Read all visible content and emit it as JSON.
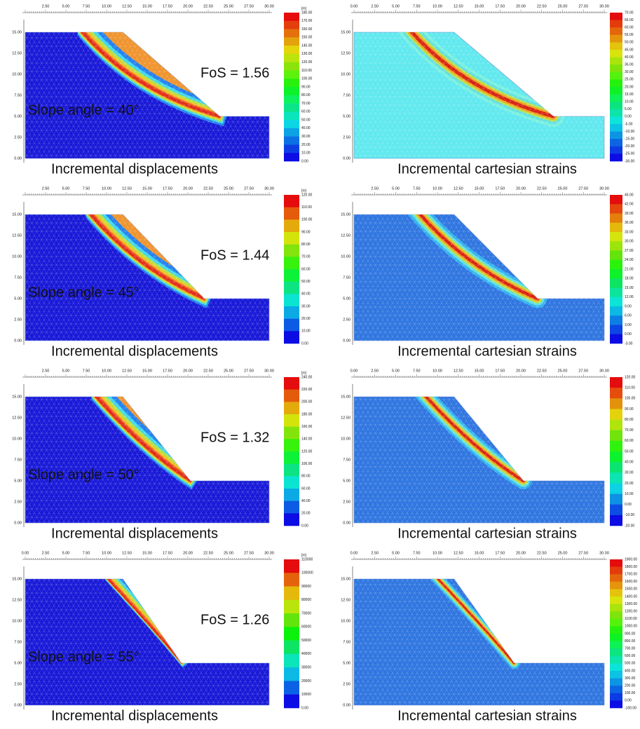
{
  "panels": [
    {
      "fos": "FoS = 1.56",
      "slope_angle": "Slope angle = 40°",
      "caption": "Incremental displacements",
      "units": "[m]",
      "x_ticks": [
        "2.50",
        "5.00",
        "7.50",
        "10.00",
        "12.50",
        "15.00",
        "17.50",
        "20.00",
        "22.50",
        "25.00",
        "27.50",
        "30.00"
      ],
      "y_ticks": [
        "0.00",
        "2.50",
        "5.00",
        "7.50",
        "10.00",
        "12.50",
        "15.00"
      ],
      "legend": [
        "180.00",
        "170.00",
        "160.00",
        "150.00",
        "140.00",
        "130.00",
        "120.00",
        "110.00",
        "100.00",
        "90.00",
        "80.00",
        "70.00",
        "60.00",
        "50.00",
        "40.00",
        "30.00",
        "20.00",
        "10.00",
        "0.00"
      ]
    },
    {
      "caption": "Incremental cartesian strains",
      "x_ticks": [
        "0.00",
        "2.50",
        "5.00",
        "7.50",
        "10.00",
        "12.50",
        "15.00",
        "17.50",
        "20.00",
        "22.50",
        "25.00",
        "27.50",
        "30.00"
      ],
      "y_ticks": [
        "0.00",
        "2.50",
        "5.00",
        "7.50",
        "10.00",
        "12.50",
        "15.00"
      ],
      "legend": [
        "70.00",
        "65.00",
        "60.00",
        "55.00",
        "50.00",
        "45.00",
        "40.00",
        "35.00",
        "30.00",
        "25.00",
        "20.00",
        "15.00",
        "10.00",
        "5.00",
        "0.00",
        "-5.00",
        "-10.00",
        "-15.00",
        "-20.00",
        "-25.00",
        "-30.00"
      ]
    },
    {
      "fos": "FoS = 1.44",
      "slope_angle": "Slope angle = 45°",
      "caption": "Incremental displacements",
      "units": "[m]",
      "x_ticks": [
        "2.50",
        "5.00",
        "7.50",
        "10.00",
        "12.50",
        "15.00",
        "17.50",
        "20.00",
        "22.50",
        "25.00",
        "27.50",
        "30.00"
      ],
      "y_ticks": [
        "0.00",
        "2.50",
        "5.00",
        "7.50",
        "10.00",
        "12.50",
        "15.00"
      ],
      "legend": [
        "120.00",
        "110.00",
        "100.00",
        "90.00",
        "80.00",
        "70.00",
        "60.00",
        "50.00",
        "40.00",
        "30.00",
        "20.00",
        "10.00",
        "0.00"
      ]
    },
    {
      "caption": "Incremental cartesian strains",
      "x_ticks": [
        "2.50",
        "5.00",
        "7.50",
        "10.00",
        "12.50",
        "15.00",
        "17.50",
        "20.00",
        "22.50",
        "25.00",
        "27.50",
        "30.00"
      ],
      "y_ticks": [
        "0.00",
        "2.50",
        "5.00",
        "7.50",
        "10.00",
        "12.50",
        "15.00"
      ],
      "legend": [
        "45.00",
        "42.00",
        "39.00",
        "36.00",
        "33.00",
        "30.00",
        "27.00",
        "24.00",
        "21.00",
        "18.00",
        "15.00",
        "12.00",
        "9.00",
        "6.00",
        "3.00",
        "0.00",
        "-3.00"
      ]
    },
    {
      "fos": "FoS = 1.32",
      "slope_angle": "Slope angle = 50°",
      "caption": "Incremental displacements",
      "units": "[m]",
      "x_ticks": [
        "2.50",
        "5.00",
        "7.50",
        "10.00",
        "12.50",
        "15.00",
        "17.50",
        "20.00",
        "22.50",
        "25.00",
        "27.50",
        "30.00"
      ],
      "y_ticks": [
        "0.00",
        "2.50",
        "5.00",
        "7.50",
        "10.00",
        "12.50",
        "15.00"
      ],
      "legend": [
        "240.00",
        "220.00",
        "200.00",
        "180.00",
        "160.00",
        "140.00",
        "120.00",
        "100.00",
        "80.00",
        "60.00",
        "40.00",
        "20.00",
        "0.00"
      ]
    },
    {
      "caption": "Incremental cartesian strains",
      "x_ticks": [
        "0.00",
        "2.50",
        "5.00",
        "7.50",
        "10.00",
        "12.50",
        "15.00",
        "17.50",
        "20.00",
        "22.50",
        "25.00",
        "27.50",
        "30.00"
      ],
      "y_ticks": [
        "0.00",
        "2.50",
        "5.00",
        "7.50",
        "10.00",
        "12.50",
        "15.00"
      ],
      "legend": [
        "120.00",
        "110.00",
        "100.00",
        "90.00",
        "80.00",
        "70.00",
        "60.00",
        "50.00",
        "40.00",
        "30.00",
        "20.00",
        "10.00",
        "0.00",
        "-10.00",
        "-20.00"
      ]
    },
    {
      "fos": "FoS = 1.26",
      "slope_angle": "Slope angle = 55°",
      "caption": "Incremental displacements",
      "units": "[m]",
      "x_ticks": [
        "0.00",
        "2.50",
        "5.00",
        "7.50",
        "10.00",
        "12.50",
        "15.00",
        "17.50",
        "20.00",
        "22.50",
        "25.00",
        "27.50",
        "30.00"
      ],
      "y_ticks": [
        "0.00",
        "2.50",
        "5.00",
        "7.50",
        "10.00",
        "12.50",
        "15.00"
      ],
      "legend": [
        "110000",
        "100000",
        "90000",
        "80000",
        "70000",
        "60000",
        "50000",
        "40000",
        "30000",
        "20000",
        "10000",
        "0.00"
      ]
    },
    {
      "caption": "Incremental cartesian strains",
      "x_ticks": [
        "0.00",
        "2.50",
        "5.00",
        "7.50",
        "10.00",
        "12.50",
        "15.00",
        "17.50",
        "20.00",
        "22.50",
        "25.00",
        "27.50",
        "30.00"
      ],
      "y_ticks": [
        "0.00",
        "2.50",
        "5.00",
        "7.50",
        "10.00",
        "12.50",
        "15.00"
      ],
      "legend": [
        "1900.00",
        "1800.00",
        "1700.00",
        "1600.00",
        "1500.00",
        "1400.00",
        "1300.00",
        "1200.00",
        "1100.00",
        "1000.00",
        "900.00",
        "800.00",
        "700.00",
        "600.00",
        "500.00",
        "400.00",
        "300.00",
        "200.00",
        "100.00",
        "0.00",
        "-100.00"
      ]
    }
  ]
}
